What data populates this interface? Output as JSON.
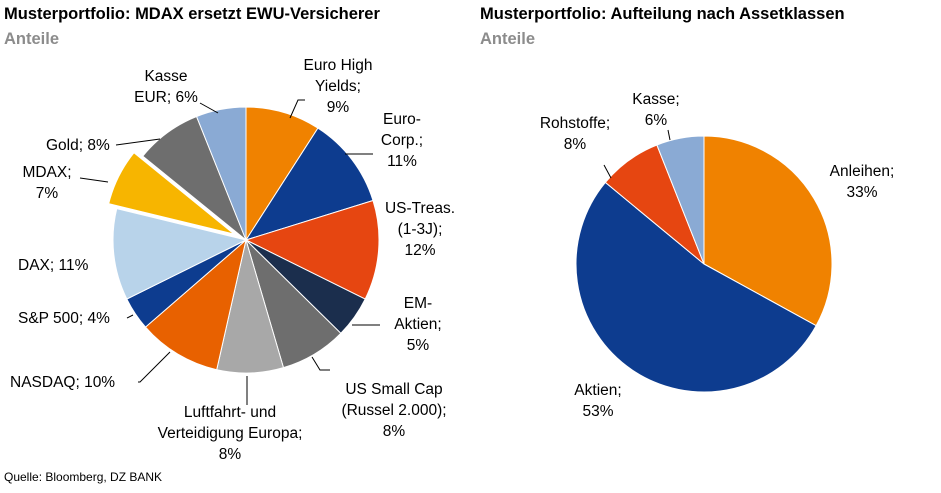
{
  "header": {
    "left_title": "Musterportfolio: MDAX ersetzt EWU-Versicherer",
    "left_subtitle": "Anteile",
    "right_title": "Musterportfolio: Aufteilung nach Assetklassen",
    "right_subtitle": "Anteile"
  },
  "footer": {
    "source": "Quelle: Bloomberg, DZ BANK"
  },
  "chart_data": [
    {
      "type": "pie",
      "title": "Musterportfolio: MDAX ersetzt EWU-Versicherer",
      "subtitle": "Anteile",
      "unit": "%",
      "start_angle_deg": 0,
      "direction": "clockwise",
      "slices": [
        {
          "label": "Euro High Yields; 9%",
          "value": 9,
          "color": "#f08200"
        },
        {
          "label": "Euro-Corp.; 11%",
          "value": 11,
          "color": "#0d3c8f"
        },
        {
          "label": "US-Treas. (1-3J); 12%",
          "value": 12,
          "color": "#e64611"
        },
        {
          "label": "EM-Aktien; 5%",
          "value": 5,
          "color": "#1b2e4d"
        },
        {
          "label": "US Small Cap (Russel 2.000); 8%",
          "value": 8,
          "color": "#6e6e6e"
        },
        {
          "label": "Luftfahrt- und Verteidigung Europa; 8%",
          "value": 8,
          "color": "#a8a8a8"
        },
        {
          "label": "NASDAQ; 10%",
          "value": 10,
          "color": "#e86100"
        },
        {
          "label": "S&P 500; 4%",
          "value": 4,
          "color": "#0d3c8f"
        },
        {
          "label": "DAX; 11%",
          "value": 11,
          "color": "#b8d3ea"
        },
        {
          "label": "MDAX; 7%",
          "value": 7,
          "color": "#f7b500",
          "exploded": true
        },
        {
          "label": "Gold; 8%",
          "value": 8,
          "color": "#6e6e6e"
        },
        {
          "label": "Kasse EUR; 6%",
          "value": 6,
          "color": "#8aaad4"
        }
      ]
    },
    {
      "type": "pie",
      "title": "Musterportfolio: Aufteilung nach Assetklassen",
      "subtitle": "Anteile",
      "unit": "%",
      "start_angle_deg": 0,
      "direction": "clockwise",
      "slices": [
        {
          "label": "Anleihen; 33%",
          "value": 33,
          "color": "#f08200"
        },
        {
          "label": "Aktien; 53%",
          "value": 53,
          "color": "#0d3c8f"
        },
        {
          "label": "Rohstoffe; 8%",
          "value": 8,
          "color": "#e64611"
        },
        {
          "label": "Kasse; 6%",
          "value": 6,
          "color": "#8aaad4"
        }
      ]
    }
  ]
}
